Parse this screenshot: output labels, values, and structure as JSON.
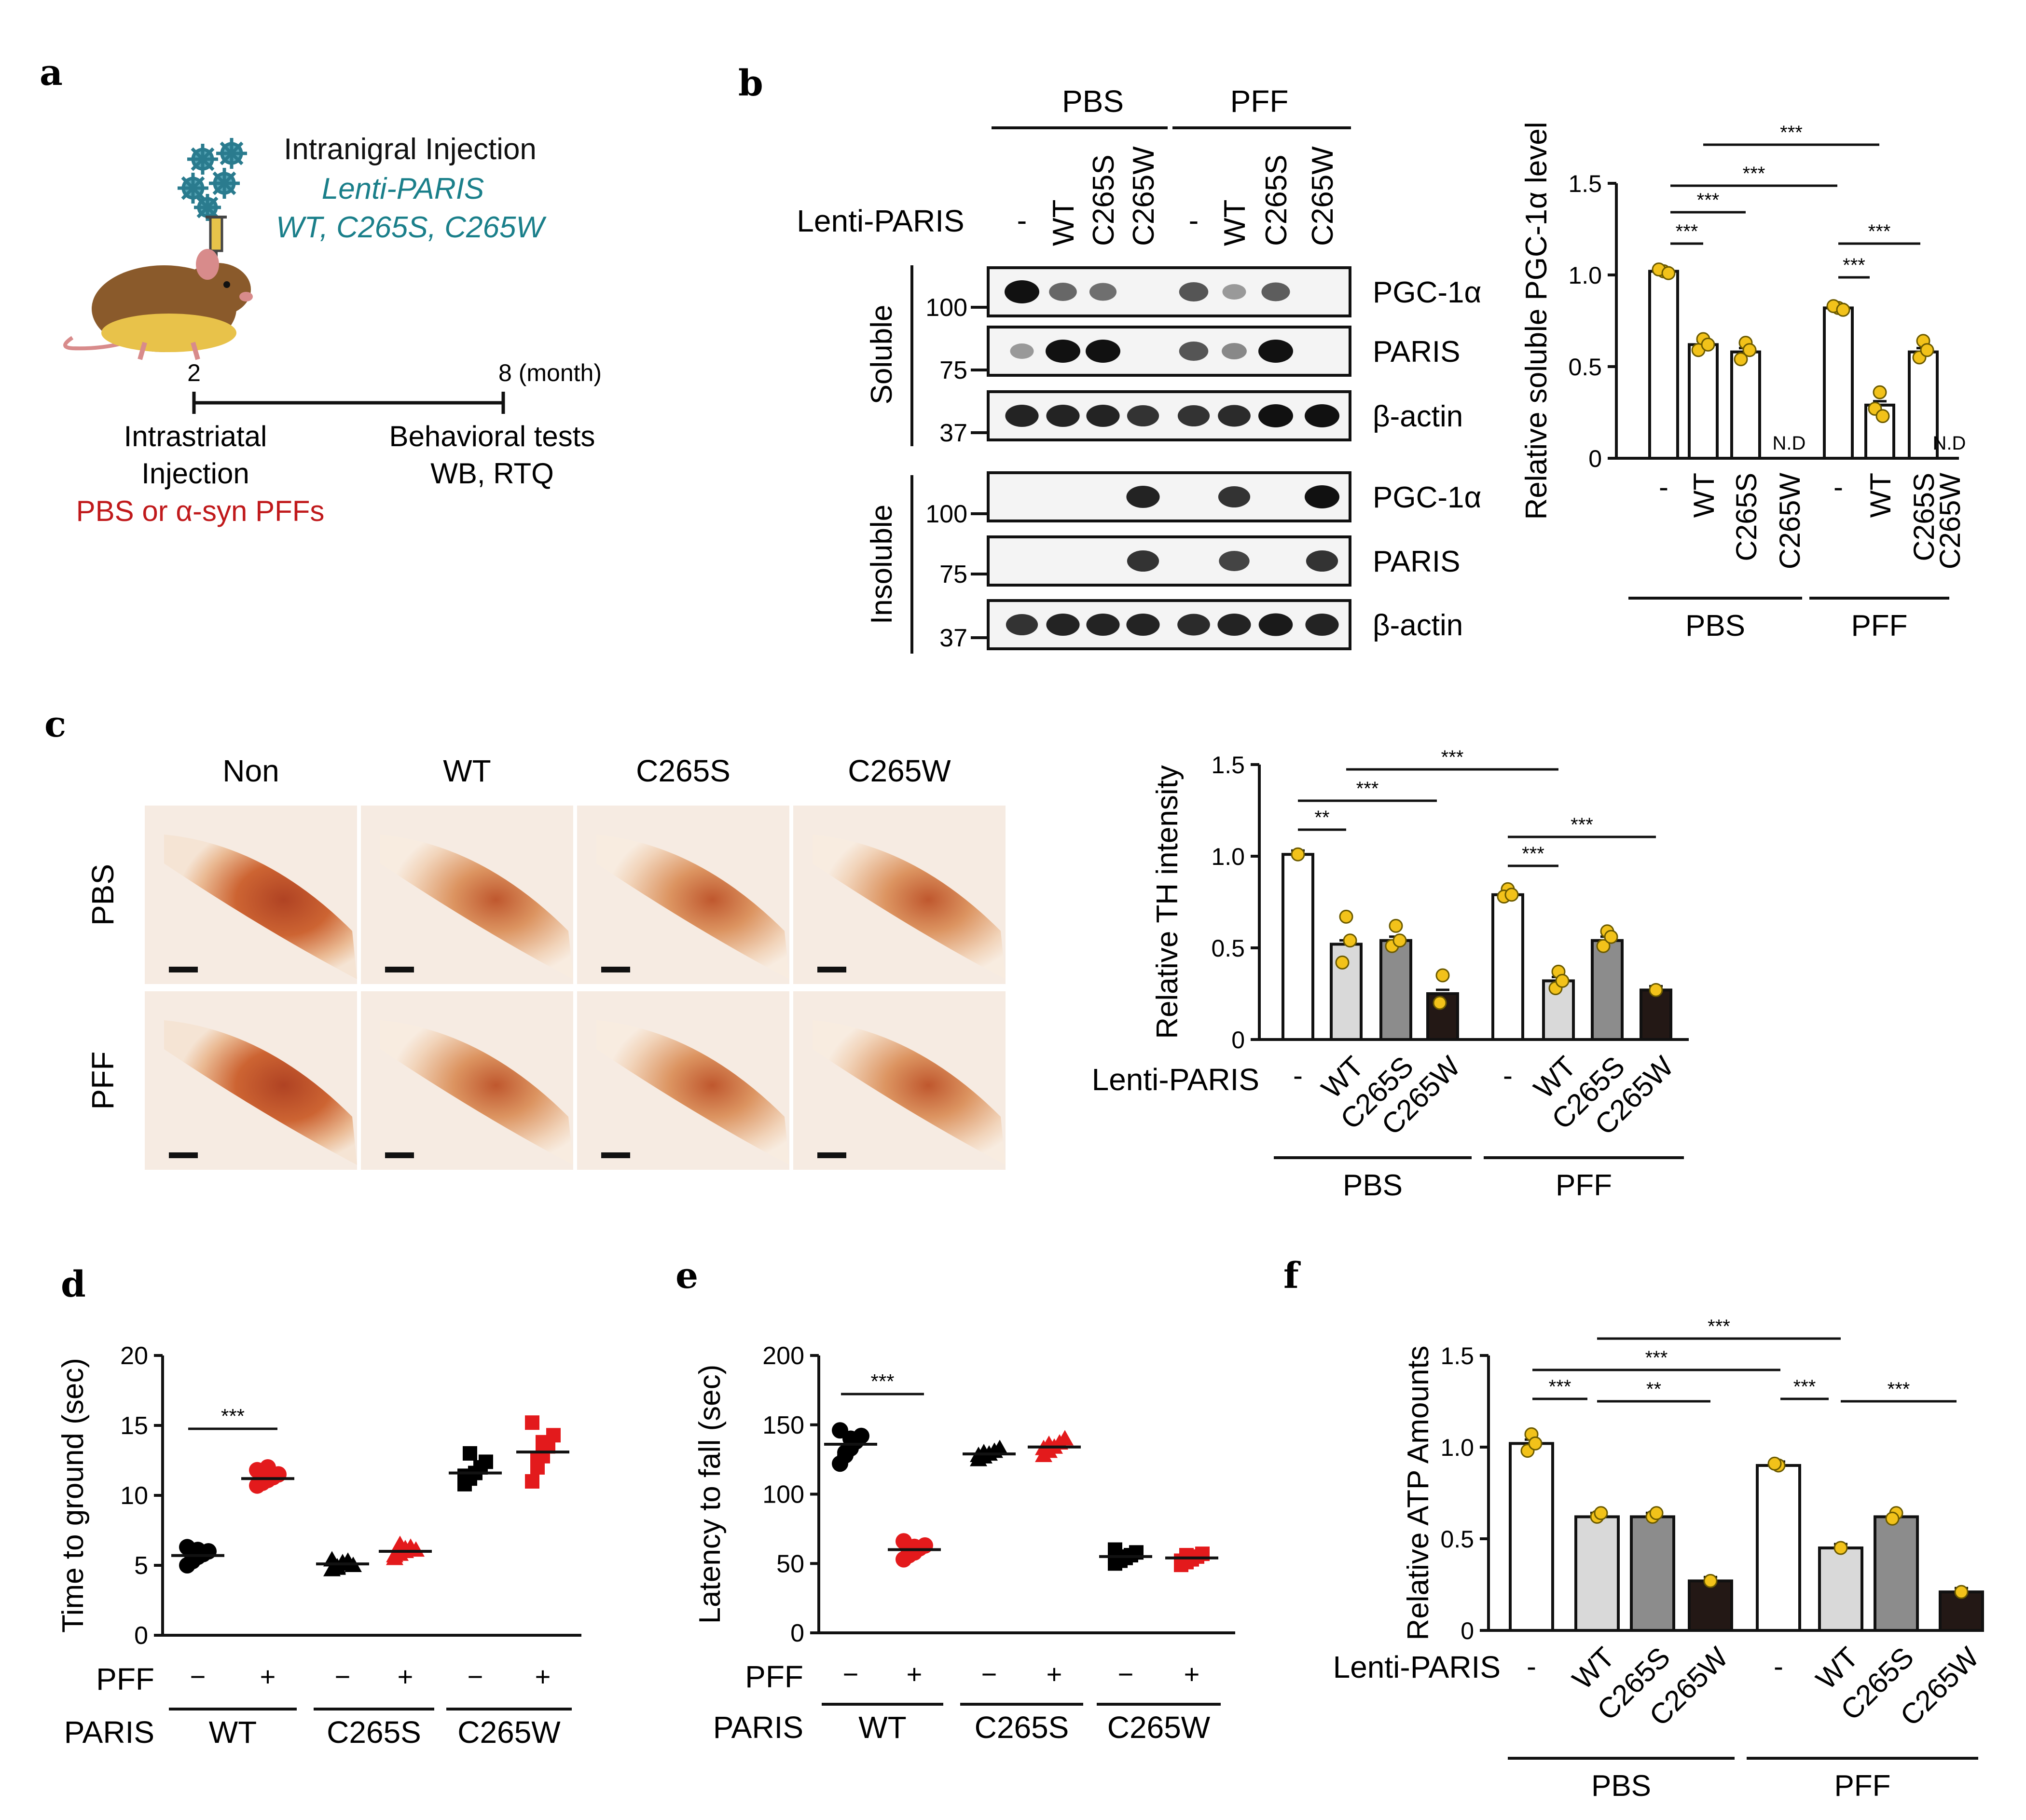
{
  "panel_labels": {
    "a": "a",
    "b": "b",
    "c": "c",
    "d": "d",
    "e": "e",
    "f": "f"
  },
  "colors": {
    "black": "#000000",
    "red": "#e31a1c",
    "teal": "#1a7f8a",
    "darkred": "#c0191b",
    "yellow": "#f2c21a",
    "light": "#d9d9d9",
    "mid": "#8c8c8c",
    "dark": "#231815"
  },
  "panel_a": {
    "injection_title": "Intranigral Injection",
    "lenti": "Lenti-PARIS",
    "variants": "WT, C265S, C265W",
    "time_start": "2",
    "time_end": "8 (month)",
    "left_label_1": "Intrastriatal",
    "left_label_2": "Injection",
    "left_label_3": "PBS or α-syn PFFs",
    "right_label_1": "Behavioral tests",
    "right_label_2": "WB, RTQ",
    "icons": [
      "virus-icon",
      "syringe-icon",
      "mouse-icon"
    ]
  },
  "panel_b": {
    "groups": [
      "PBS",
      "PFF"
    ],
    "row_label": "Lenti-PARIS",
    "lanes": [
      "-",
      "WT",
      "C265S",
      "C265W",
      "-",
      "WT",
      "C265S",
      "C265W"
    ],
    "fractions": [
      "Soluble",
      "Insoluble"
    ],
    "blots": [
      "PGC-1α",
      "PARIS",
      "β-actin",
      "PGC-1α",
      "PARIS",
      "β-actin"
    ],
    "mw_markers": [
      "100",
      "75",
      "37",
      "100",
      "75",
      "37"
    ]
  },
  "chart_data": [
    {
      "id": "b",
      "type": "bar",
      "ylabel": "Relative soluble PGC-1α level",
      "ylim": [
        0,
        1.5
      ],
      "yticks": [
        "0",
        "0.5",
        "1.0",
        "1.5"
      ],
      "categories": [
        "-",
        "WT",
        "C265S",
        "C265W",
        "-",
        "WT",
        "C265S",
        "C265W"
      ],
      "groups": [
        "PBS",
        "PFF"
      ],
      "values": [
        1.02,
        0.62,
        0.58,
        0,
        0.82,
        0.29,
        0.58,
        0
      ],
      "na_label": "N.D",
      "significance": [
        "***",
        "***",
        "***",
        "***",
        "***",
        "***"
      ]
    },
    {
      "id": "c",
      "type": "bar",
      "ylabel": "Relative TH intensity",
      "ylim": [
        0,
        1.5
      ],
      "yticks": [
        "0",
        "0.5",
        "1.0",
        "1.5"
      ],
      "row_label": "Lenti-PARIS",
      "categories": [
        "-",
        "WT",
        "C265S",
        "C265W",
        "-",
        "WT",
        "C265S",
        "C265W"
      ],
      "groups": [
        "PBS",
        "PFF"
      ],
      "values": [
        1.01,
        0.52,
        0.54,
        0.25,
        0.79,
        0.32,
        0.54,
        0.27
      ],
      "significance": [
        "**",
        "***",
        "***",
        "***",
        "***"
      ]
    },
    {
      "id": "d",
      "type": "scatter",
      "ylabel": "Time to ground (sec)",
      "ylim": [
        0,
        20
      ],
      "yticks": [
        "0",
        "5",
        "10",
        "15",
        "20"
      ],
      "pff": [
        "−",
        "+",
        "−",
        "+",
        "−",
        "+"
      ],
      "paris_groups": [
        "WT",
        "C265S",
        "C265W"
      ],
      "row_labels": [
        "PFF",
        "PARIS"
      ],
      "means": [
        5.7,
        11.2,
        5.1,
        6.0,
        11.6,
        13.1
      ],
      "points": [
        [
          5.0,
          5.3,
          5.6,
          5.8,
          6.0,
          6.3,
          5.5,
          6.1
        ],
        [
          10.7,
          10.9,
          11.1,
          11.3,
          11.5,
          11.8,
          11.0,
          12.0
        ],
        [
          4.7,
          4.9,
          5.1,
          5.3,
          5.0,
          5.4,
          4.8,
          5.2
        ],
        [
          5.5,
          5.8,
          6.0,
          6.3,
          6.1,
          5.7,
          6.5,
          6.2
        ],
        [
          10.8,
          11.2,
          11.6,
          12.0,
          12.4,
          11.4,
          13.0
        ],
        [
          11.0,
          12.0,
          12.8,
          13.5,
          14.3,
          15.2,
          12.5,
          13.8
        ]
      ],
      "significance": [
        "***"
      ]
    },
    {
      "id": "e",
      "type": "scatter",
      "ylabel": "Latency to fall (sec)",
      "ylim": [
        0,
        200
      ],
      "yticks": [
        "0",
        "50",
        "100",
        "150",
        "200"
      ],
      "pff": [
        "−",
        "+",
        "−",
        "+",
        "−",
        "+"
      ],
      "paris_groups": [
        "WT",
        "C265S",
        "C265W"
      ],
      "row_labels": [
        "PFF",
        "PARIS"
      ],
      "means": [
        136,
        60,
        129,
        134,
        55,
        54
      ],
      "points": [
        [
          122,
          128,
          133,
          138,
          142,
          146,
          130,
          140
        ],
        [
          53,
          56,
          58,
          61,
          63,
          66,
          59,
          62
        ],
        [
          125,
          127,
          129,
          131,
          133,
          128,
          130
        ],
        [
          128,
          131,
          134,
          137,
          140,
          133,
          136
        ],
        [
          50,
          52,
          54,
          56,
          58,
          60,
          55
        ],
        [
          49,
          51,
          53,
          55,
          57,
          52,
          56
        ]
      ],
      "significance": [
        "***"
      ]
    },
    {
      "id": "f",
      "type": "bar",
      "ylabel": "Relative ATP Amounts",
      "ylim": [
        0,
        1.5
      ],
      "yticks": [
        "0",
        "0.5",
        "1.0",
        "1.5"
      ],
      "row_label": "Lenti-PARIS",
      "categories": [
        "-",
        "WT",
        "C265S",
        "C265W",
        "-",
        "WT",
        "C265S",
        "C265W"
      ],
      "groups": [
        "PBS",
        "PFF"
      ],
      "values": [
        1.02,
        0.62,
        0.62,
        0.27,
        0.9,
        0.45,
        0.62,
        0.21
      ],
      "significance": [
        "***",
        "**",
        "***",
        "***",
        "***",
        "***"
      ]
    }
  ],
  "panel_c": {
    "columns": [
      "Non",
      "WT",
      "C265S",
      "C265W"
    ],
    "rows": [
      "PBS",
      "PFF"
    ]
  }
}
